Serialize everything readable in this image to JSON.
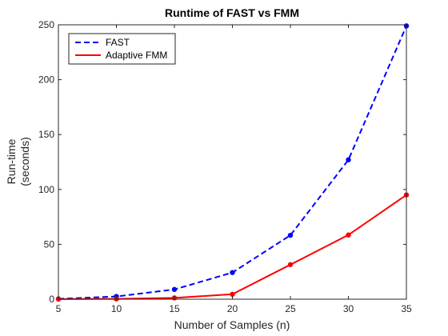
{
  "chart_data": {
    "type": "line",
    "title": "Runtime of FAST vs FMM",
    "xlabel": "Number of Samples (n)",
    "ylabel": [
      "Run-time",
      "(seconds)"
    ],
    "x": [
      5,
      10,
      15,
      20,
      25,
      30,
      35
    ],
    "xlim": [
      5,
      35
    ],
    "ylim": [
      0,
      250
    ],
    "xticks": [
      5,
      10,
      15,
      20,
      25,
      30,
      35
    ],
    "yticks": [
      0,
      50,
      100,
      150,
      200,
      250
    ],
    "grid": false,
    "legend_position": "top-left",
    "series": [
      {
        "name": "FAST",
        "color": "#0000ff",
        "line_style": "dashed",
        "values": [
          0.3,
          2.5,
          8.9,
          24.3,
          58.2,
          127.0,
          249.0
        ]
      },
      {
        "name": "Adaptive FMM",
        "color": "#ff0000",
        "line_style": "solid",
        "values": [
          0.1,
          0.3,
          1.2,
          4.5,
          31.5,
          58.5,
          95.0
        ]
      }
    ]
  }
}
